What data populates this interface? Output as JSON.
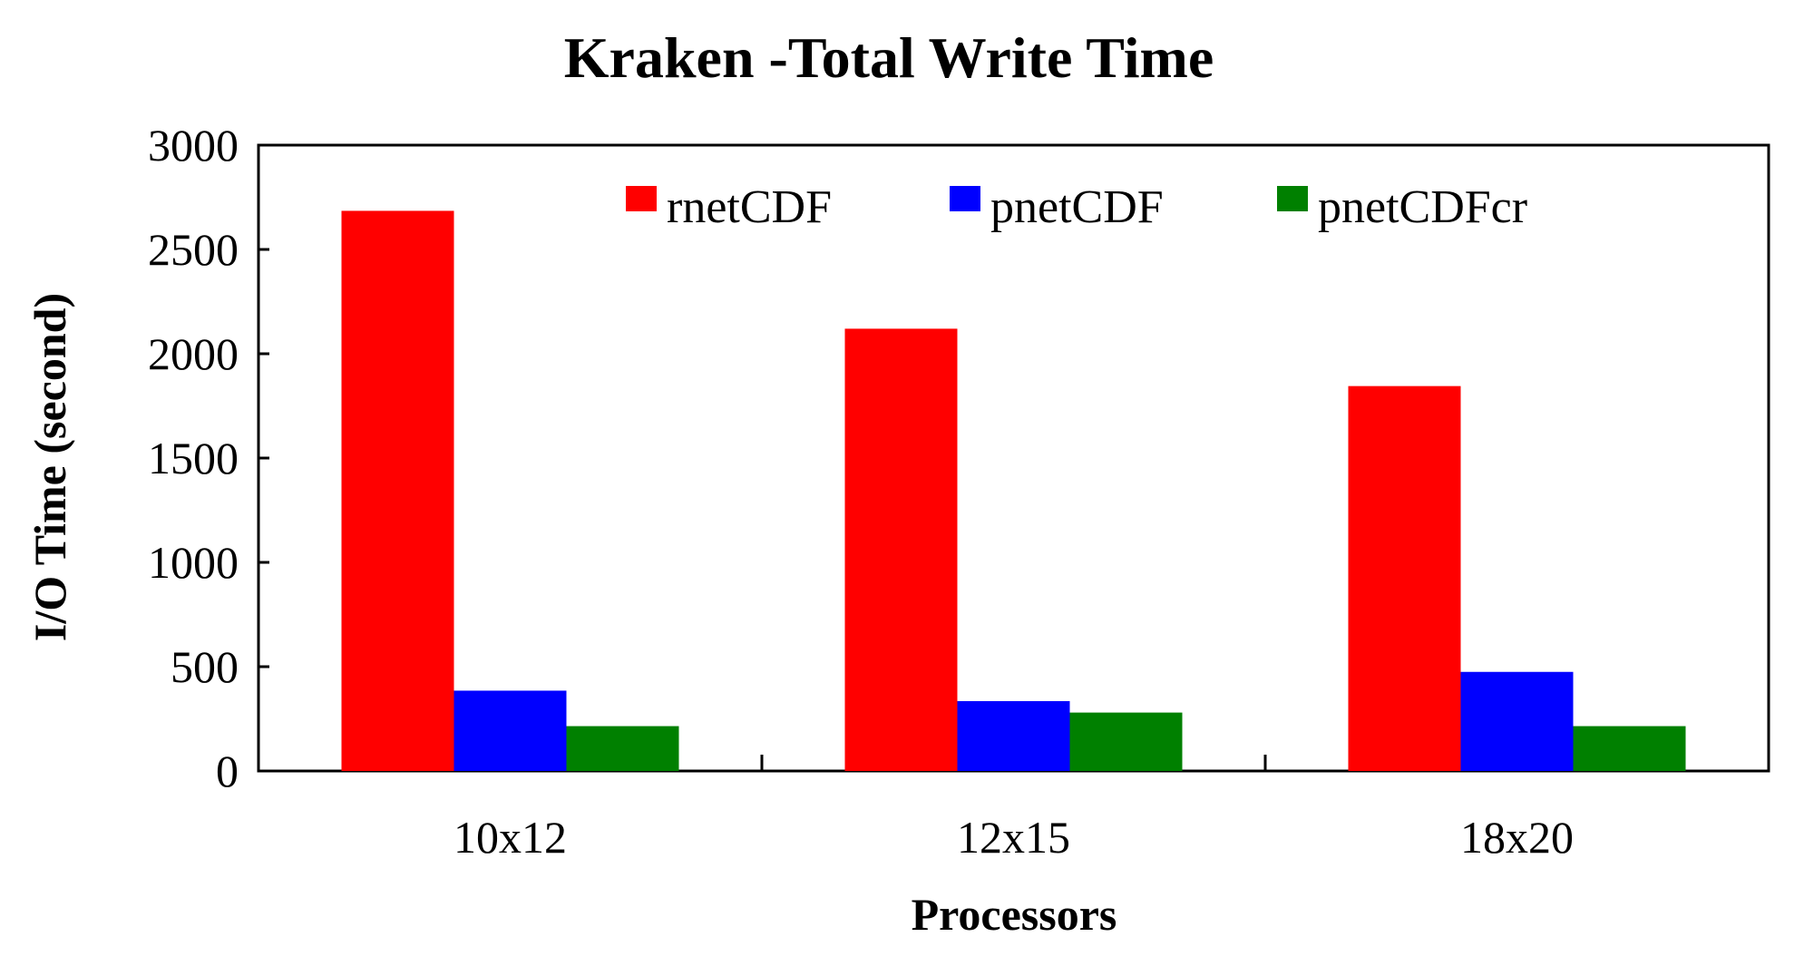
{
  "chart_data": {
    "type": "bar",
    "title": "Kraken -Total Write Time",
    "xlabel": "Processors",
    "ylabel": "I/O Time (second)",
    "categories": [
      "10x12",
      "12x15",
      "18x20"
    ],
    "series": [
      {
        "name": "rnetCDF",
        "color": "#ff0000",
        "values": [
          2685,
          2120,
          1845
        ]
      },
      {
        "name": "pnetCDF",
        "color": "#0000ff",
        "values": [
          385,
          335,
          475
        ]
      },
      {
        "name": "pnetCDFcr",
        "color": "#008000",
        "values": [
          215,
          280,
          215
        ]
      }
    ],
    "ylim": [
      0,
      3000
    ],
    "yticks": [
      "0",
      "500",
      "1000",
      "1500",
      "2000",
      "2500",
      "3000"
    ],
    "legend_position": "top",
    "grid": false
  }
}
